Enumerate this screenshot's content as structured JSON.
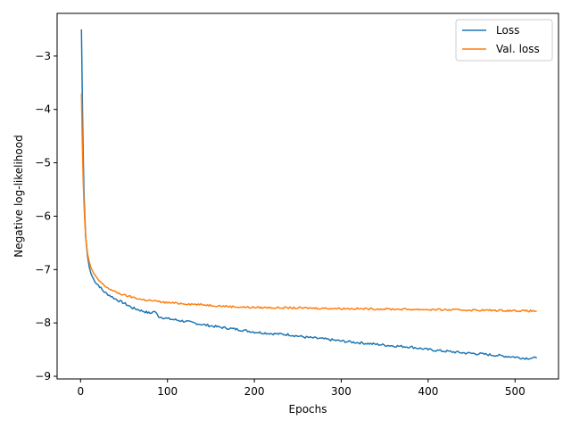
{
  "chart_data": {
    "type": "line",
    "title": "",
    "xlabel": "Epochs",
    "ylabel": "Negative log-likelihood",
    "xlim": [
      -27,
      550
    ],
    "ylim": [
      -9.05,
      -2.2
    ],
    "xticks": [
      0,
      100,
      200,
      300,
      400,
      500
    ],
    "yticks": [
      -9,
      -8,
      -7,
      -6,
      -5,
      -4,
      -3
    ],
    "ytick_labels": [
      "−9",
      "−8",
      "−7",
      "−6",
      "−5",
      "−4",
      "−3"
    ],
    "grid": false,
    "legend_position": "top-right",
    "series": [
      {
        "name": "Loss",
        "color": "#1f77b4",
        "points": [
          [
            1,
            -2.5
          ],
          [
            2,
            -3.7
          ],
          [
            3,
            -4.8
          ],
          [
            4,
            -5.6
          ],
          [
            5,
            -6.05
          ],
          [
            6,
            -6.4
          ],
          [
            8,
            -6.75
          ],
          [
            10,
            -6.95
          ],
          [
            12,
            -7.08
          ],
          [
            15,
            -7.18
          ],
          [
            18,
            -7.25
          ],
          [
            22,
            -7.32
          ],
          [
            26,
            -7.4
          ],
          [
            30,
            -7.45
          ],
          [
            35,
            -7.5
          ],
          [
            40,
            -7.55
          ],
          [
            50,
            -7.63
          ],
          [
            60,
            -7.72
          ],
          [
            70,
            -7.77
          ],
          [
            80,
            -7.82
          ],
          [
            85,
            -7.78
          ],
          [
            90,
            -7.88
          ],
          [
            100,
            -7.92
          ],
          [
            120,
            -7.97
          ],
          [
            140,
            -8.03
          ],
          [
            160,
            -8.08
          ],
          [
            180,
            -8.12
          ],
          [
            200,
            -8.17
          ],
          [
            220,
            -8.2
          ],
          [
            240,
            -8.22
          ],
          [
            260,
            -8.27
          ],
          [
            280,
            -8.3
          ],
          [
            300,
            -8.34
          ],
          [
            320,
            -8.37
          ],
          [
            340,
            -8.4
          ],
          [
            360,
            -8.43
          ],
          [
            380,
            -8.45
          ],
          [
            400,
            -8.5
          ],
          [
            420,
            -8.53
          ],
          [
            440,
            -8.56
          ],
          [
            460,
            -8.58
          ],
          [
            480,
            -8.61
          ],
          [
            500,
            -8.64
          ],
          [
            510,
            -8.66
          ],
          [
            525,
            -8.66
          ]
        ]
      },
      {
        "name": "Val. loss",
        "color": "#ff7f0e",
        "points": [
          [
            1,
            -3.7
          ],
          [
            2,
            -4.6
          ],
          [
            3,
            -5.3
          ],
          [
            4,
            -5.8
          ],
          [
            5,
            -6.15
          ],
          [
            6,
            -6.4
          ],
          [
            8,
            -6.7
          ],
          [
            10,
            -6.85
          ],
          [
            12,
            -6.97
          ],
          [
            15,
            -7.07
          ],
          [
            18,
            -7.15
          ],
          [
            22,
            -7.22
          ],
          [
            26,
            -7.28
          ],
          [
            30,
            -7.33
          ],
          [
            35,
            -7.38
          ],
          [
            40,
            -7.42
          ],
          [
            50,
            -7.48
          ],
          [
            60,
            -7.52
          ],
          [
            70,
            -7.56
          ],
          [
            80,
            -7.58
          ],
          [
            100,
            -7.62
          ],
          [
            120,
            -7.64
          ],
          [
            140,
            -7.66
          ],
          [
            160,
            -7.68
          ],
          [
            180,
            -7.7
          ],
          [
            200,
            -7.71
          ],
          [
            250,
            -7.72
          ],
          [
            300,
            -7.73
          ],
          [
            350,
            -7.74
          ],
          [
            400,
            -7.75
          ],
          [
            450,
            -7.76
          ],
          [
            500,
            -7.77
          ],
          [
            525,
            -7.78
          ]
        ]
      }
    ]
  }
}
